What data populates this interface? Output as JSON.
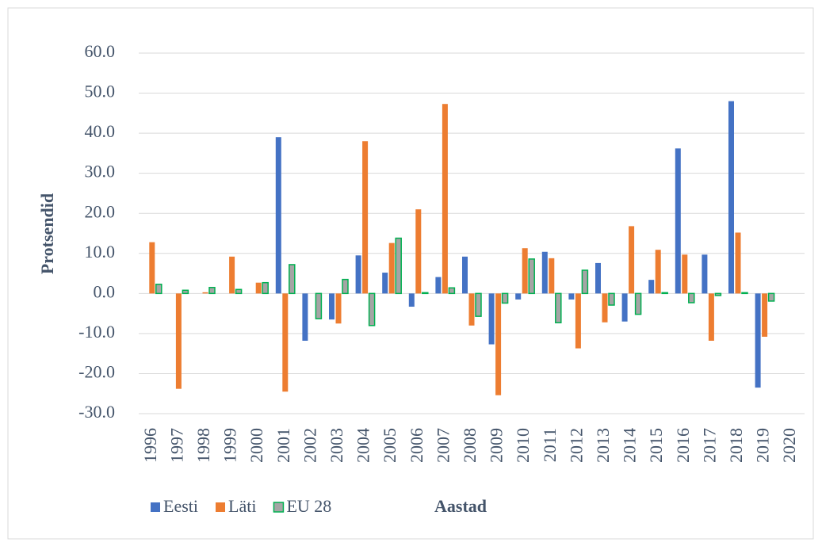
{
  "chart_data": {
    "type": "bar",
    "y_label": "Protsendid",
    "x_label": "Aastad",
    "categories": [
      "1996",
      "1997",
      "1998",
      "1999",
      "2000",
      "2001",
      "2002",
      "2003",
      "2004",
      "2005",
      "2006",
      "2007",
      "2008",
      "2009",
      "2010",
      "2011",
      "2012",
      "2013",
      "2014",
      "2015",
      "2016",
      "2017",
      "2018",
      "2019",
      "2020"
    ],
    "series": [
      {
        "name": "Eesti",
        "color": "#4472c4",
        "values": [
          0,
          0,
          0,
          0,
          0,
          39.0,
          -11.8,
          -6.5,
          9.5,
          5.2,
          -3.3,
          4.1,
          9.2,
          -12.7,
          -1.5,
          10.4,
          -1.5,
          7.6,
          -7.0,
          3.4,
          36.2,
          9.7,
          48.0,
          -23.5,
          null
        ]
      },
      {
        "name": "Läti",
        "color": "#ed7d31",
        "values": [
          12.8,
          -23.8,
          0.3,
          9.2,
          2.7,
          -24.5,
          0,
          -7.5,
          38.0,
          12.6,
          21.0,
          47.3,
          -8.0,
          -25.4,
          11.3,
          8.8,
          -13.7,
          -7.2,
          16.8,
          10.9,
          9.7,
          -11.8,
          15.2,
          -10.8,
          null
        ]
      },
      {
        "name": "EU 28",
        "color": "#a5a5a5",
        "edgecolor": "#00b050",
        "values": [
          2.3,
          0.8,
          1.5,
          1.0,
          2.7,
          7.2,
          -6.3,
          3.5,
          -8.0,
          13.8,
          0.2,
          1.4,
          -5.7,
          -2.4,
          8.6,
          -7.3,
          5.8,
          -2.9,
          -5.2,
          0.2,
          -2.3,
          -0.5,
          0.2,
          -1.9,
          null
        ]
      }
    ],
    "ylim": [
      -30,
      60
    ],
    "yticks": [
      {
        "value": -30,
        "label": "-30.0"
      },
      {
        "value": -20,
        "label": "-20.0"
      },
      {
        "value": -10,
        "label": "-10.0"
      },
      {
        "value": 0,
        "label": "0.0"
      },
      {
        "value": 10,
        "label": "10.0"
      },
      {
        "value": 20,
        "label": "20.0"
      },
      {
        "value": 30,
        "label": "30.0"
      },
      {
        "value": 40,
        "label": "40.0"
      },
      {
        "value": 50,
        "label": "50.0"
      },
      {
        "value": 60,
        "label": "60.0"
      }
    ],
    "grid": true,
    "legend": "bottom"
  }
}
